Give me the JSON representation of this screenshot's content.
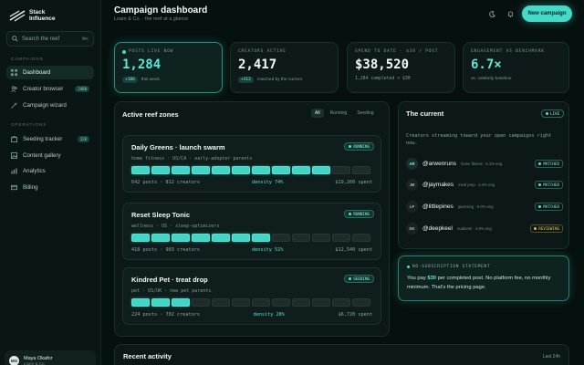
{
  "brand": {
    "name_line1": "Stack",
    "name_line2": "Influence"
  },
  "search": {
    "placeholder": "Search the reef",
    "shortcut": "⌘K"
  },
  "sidebar": {
    "campaigns_label": "CAMPAIGNS",
    "operations_label": "OPERATIONS",
    "campaign_items": [
      {
        "label": "Dashboard",
        "icon": "grid-icon",
        "active": true
      },
      {
        "label": "Creator browser",
        "icon": "users-icon",
        "badge": "2480"
      },
      {
        "label": "Campaign wizard",
        "icon": "wand-icon"
      }
    ],
    "operation_items": [
      {
        "label": "Seeding tracker",
        "icon": "box-icon",
        "badge": "128"
      },
      {
        "label": "Content gallery",
        "icon": "image-icon"
      },
      {
        "label": "Analytics",
        "icon": "chart-icon"
      },
      {
        "label": "Billing",
        "icon": "card-icon"
      }
    ]
  },
  "user": {
    "initials": "MO",
    "name": "Maya Okafor",
    "role": "Loam & Co."
  },
  "header": {
    "title": "Campaign dashboard",
    "subtitle": "Loam & Co. · the reef at a glance",
    "new_button": "New campaign"
  },
  "stats": [
    {
      "label": "POSTS LIVE NOW",
      "value": "1,284",
      "pill": "+186",
      "foot": "this week"
    },
    {
      "label": "CREATORS ACTIVE",
      "value": "2,417",
      "pill": "+312",
      "foot": "matched by the current"
    },
    {
      "label": "SPEND TO DATE · $30 / POST",
      "value": "$38,520",
      "foot": "1,284 completed × $30"
    },
    {
      "label": "ENGAGEMENT VS BENCHMARK",
      "value": "6.7×",
      "foot": "vs. celebrity baseline"
    }
  ],
  "zones_panel": {
    "title": "Active reef zones",
    "filters": [
      "All",
      "Running",
      "Seeding"
    ],
    "zones": [
      {
        "name": "Daily Greens · launch swarm",
        "tags": "home fitness · US/CA · early-adopter parents",
        "status": "RUNNING",
        "filled": 10,
        "posts": "642 posts · 812 creators",
        "density": "density 74%",
        "spent": "$19,260 spent"
      },
      {
        "name": "Reset Sleep Tonic",
        "tags": "wellness · US · sleep-optimizers",
        "status": "RUNNING",
        "filled": 7,
        "posts": "418 posts · 903 creators",
        "density": "density 51%",
        "spent": "$12,540 spent"
      },
      {
        "name": "Kindred Pet · treat drop",
        "tags": "pet · US/UK · new pet parents",
        "status": "SEEDING",
        "filled": 3,
        "posts": "224 posts · 702 creators",
        "density": "density 28%",
        "spent": "$6,720 spent"
      }
    ]
  },
  "current_panel": {
    "title": "The current",
    "live": "LIVE",
    "description": "Creators streaming toward your open campaigns right now.",
    "creators": [
      {
        "initials": "AR",
        "handle": "@arwenruns",
        "meta": "home fitness · 5.1% eng",
        "status": "MATCHED"
      },
      {
        "initials": "JM",
        "handle": "@jaymakes",
        "meta": "meal prep · 4.4% eng",
        "status": "MATCHED"
      },
      {
        "initials": "LP",
        "handle": "@littlepines",
        "meta": "parenting · 6.0% eng",
        "status": "MATCHED"
      },
      {
        "initials": "DK",
        "handle": "@deepkeel",
        "meta": "outdoors · 4.8% eng",
        "status": "REVIEWING"
      }
    ]
  },
  "statement": {
    "label": "NO-SUBSCRIPTION STATEMENT",
    "text_before": "You pay ",
    "highlight": "$30",
    "text_after": " per completed post. No platform fee, no monthly minimum. That's the pricing page."
  },
  "recent": {
    "title": "Recent activity",
    "range": "Last 24h"
  },
  "colors": {
    "accent": "#44d9c8",
    "background": "#06100f",
    "reviewing": "#e0b847"
  }
}
